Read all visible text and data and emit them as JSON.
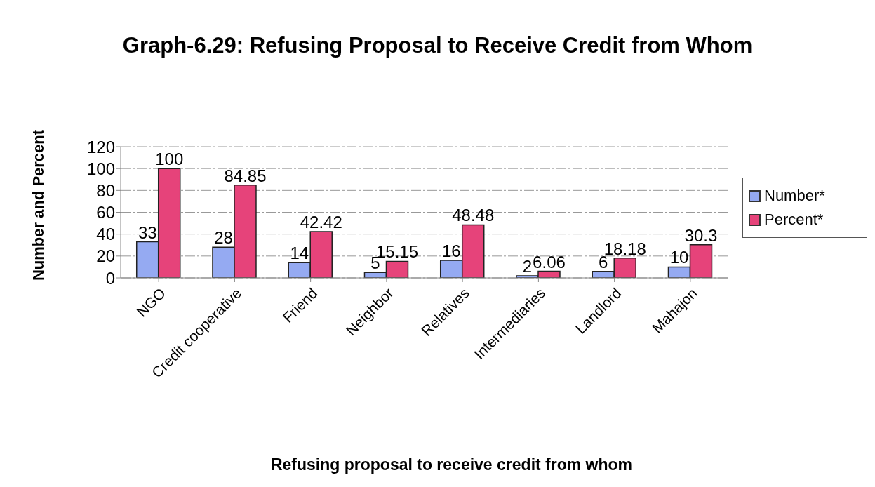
{
  "chart_data": {
    "type": "bar",
    "title": "Graph-6.29: Refusing Proposal to Receive Credit from Whom",
    "xlabel": "Refusing proposal to receive credit from whom",
    "ylabel": "Number and Percent",
    "categories": [
      "NGO",
      "Credit cooperative",
      "Friend",
      "Neighbor",
      "Relatives",
      "Intermediaries",
      "Landlord",
      "Mahajon"
    ],
    "series": [
      {
        "name": "Number*",
        "color": "#95aaf2",
        "values": [
          33,
          28,
          14,
          5,
          16,
          2,
          6,
          10
        ]
      },
      {
        "name": "Percent*",
        "color": "#e6437a",
        "values": [
          100,
          84.85,
          42.42,
          15.15,
          48.48,
          6.06,
          18.18,
          30.3
        ]
      }
    ],
    "ylim": [
      0,
      120
    ],
    "yticks": [
      0,
      20,
      40,
      60,
      80,
      100,
      120
    ],
    "grid": "y",
    "legend": "right",
    "data_labels": true
  }
}
